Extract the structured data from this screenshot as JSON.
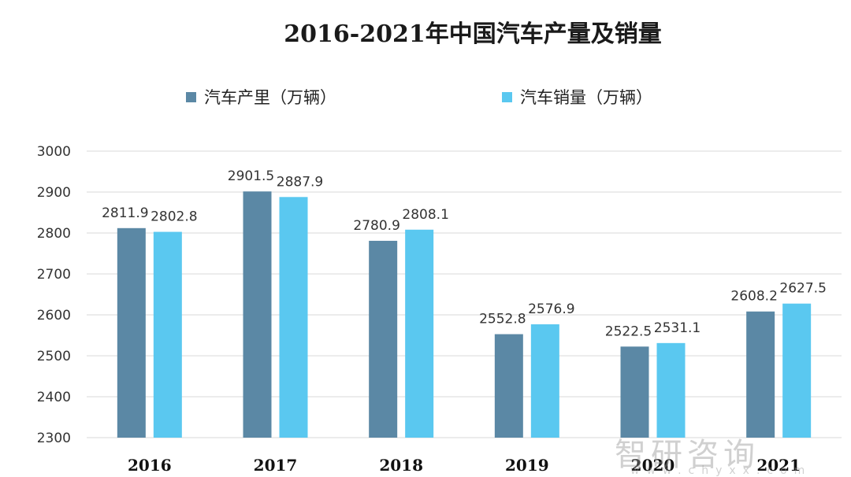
{
  "chart_data": {
    "type": "bar",
    "title": "2016-2021年中国汽车产量及销量",
    "categories": [
      "2016",
      "2017",
      "2018",
      "2019",
      "2020",
      "2021"
    ],
    "series": [
      {
        "name": "汽车产里（万辆）",
        "values": [
          2811.9,
          2901.5,
          2780.9,
          2552.8,
          2522.5,
          2608.2
        ],
        "color": "#5b88a5"
      },
      {
        "name": "汽车销量（万辆）",
        "values": [
          2802.8,
          2887.9,
          2808.1,
          2576.9,
          2531.1,
          2627.5
        ],
        "color": "#5ac8f0"
      }
    ],
    "ylim": [
      2300,
      3000
    ],
    "yticks": [
      2300,
      2400,
      2500,
      2600,
      2700,
      2800,
      2900,
      3000
    ],
    "grid": true,
    "legend_position": "top"
  },
  "watermark": {
    "text": "智研咨询",
    "url": "www.chyxx.com"
  }
}
